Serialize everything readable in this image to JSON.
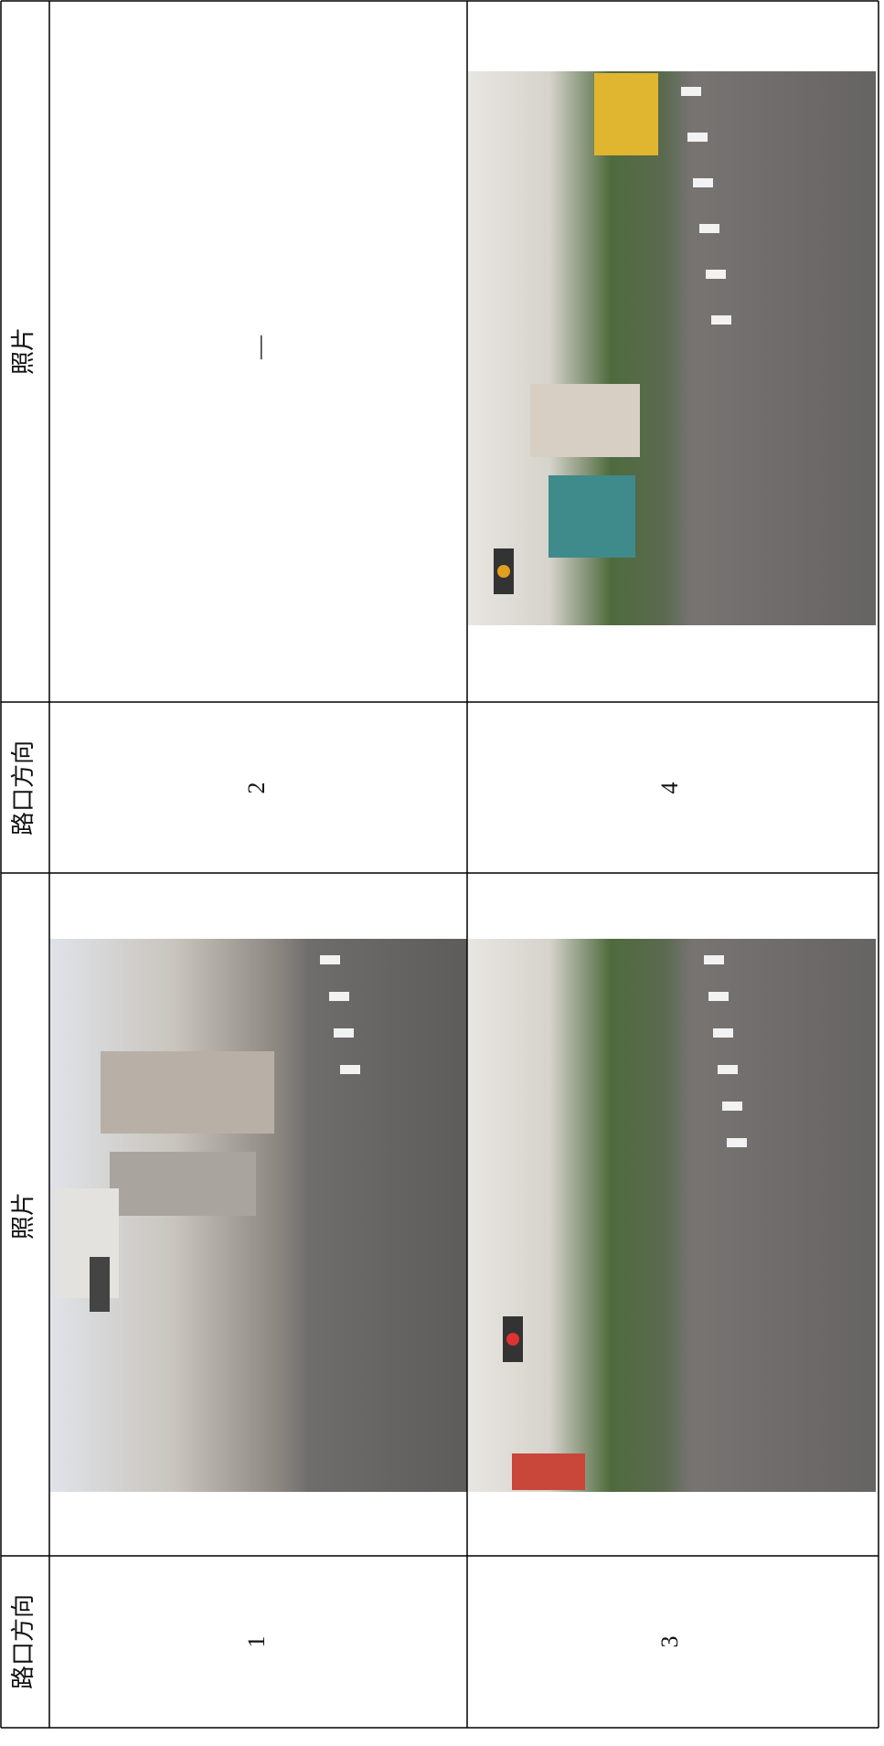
{
  "table": {
    "header": [
      "路口方向",
      "照片",
      "路口方向",
      "照片"
    ],
    "rows": [
      {
        "cells": [
          "1",
          "2"
        ],
        "note": "—"
      },
      {
        "cells": [
          "3",
          "4"
        ]
      }
    ]
  }
}
